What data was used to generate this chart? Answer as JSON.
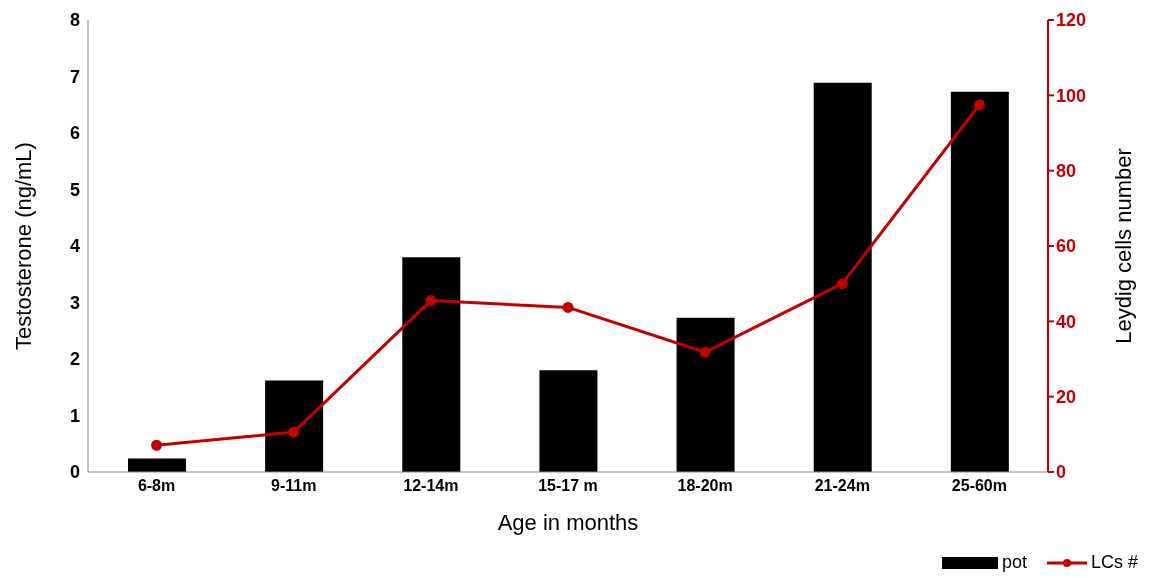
{
  "chart_data": {
    "type": "bar",
    "xlabel": "Age in months",
    "ylabel": "Testosterone (ng/mL)",
    "y2label": "Leydig cells number",
    "categories": [
      "6-8m",
      "9-11m",
      "12-14m",
      "15-17 m",
      "18-20m",
      "21-24m",
      "25-60m"
    ],
    "series": [
      {
        "name": "pot",
        "color": "#000000",
        "values": [
          0.24,
          1.62,
          3.8,
          1.8,
          2.73,
          6.89,
          6.73
        ]
      },
      {
        "name": "LCs #",
        "type": "line",
        "axis": "y2",
        "color": "#c00000",
        "marker": "circle",
        "values": [
          7.1,
          10.6,
          45.5,
          43.7,
          31.8,
          50,
          97.5
        ]
      }
    ],
    "ylim": [
      0,
      8
    ],
    "yticks": [
      0,
      1,
      2,
      3,
      4,
      5,
      6,
      7,
      8
    ],
    "y2lim": [
      0,
      120
    ],
    "y2ticks": [
      0,
      20,
      40,
      60,
      80,
      100,
      120
    ],
    "legend": "bottom right"
  }
}
